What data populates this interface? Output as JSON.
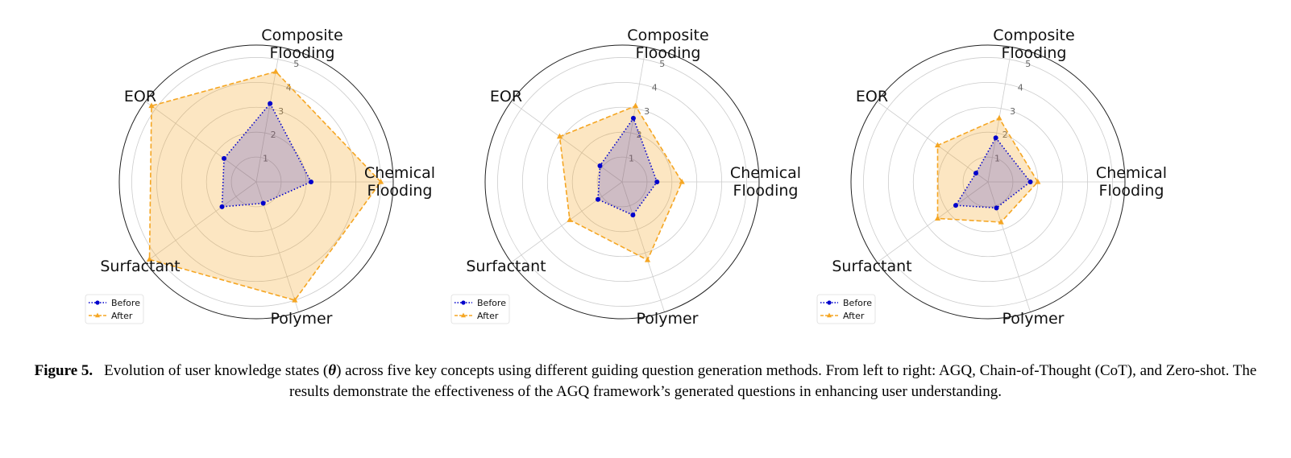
{
  "chart_data": [
    {
      "type": "radar",
      "axes": [
        "Chemical\nFlooding",
        "Composite\nFlooding",
        "EOR",
        "Surfactant",
        "Polymer"
      ],
      "rticks": [
        "1",
        "2",
        "3",
        "4",
        "5"
      ],
      "rlim": [
        0,
        5.5
      ],
      "legend_position": "lower-left",
      "series": [
        {
          "name": "Before",
          "values": [
            2.2,
            3.2,
            1.6,
            1.7,
            0.9
          ],
          "color": "#0000cc",
          "linestyle": "dotted",
          "marker": "circle"
        },
        {
          "name": "After",
          "values": [
            5.0,
            4.5,
            5.2,
            5.3,
            5.0
          ],
          "color": "#f5a623",
          "linestyle": "dashed",
          "marker": "triangle"
        }
      ]
    },
    {
      "type": "radar",
      "axes": [
        "Chemical\nFlooding",
        "Composite\nFlooding",
        "EOR",
        "Surfactant",
        "Polymer"
      ],
      "rticks": [
        "1",
        "2",
        "3",
        "4",
        "5"
      ],
      "rlim": [
        0,
        5.5
      ],
      "legend_position": "lower-left",
      "series": [
        {
          "name": "Before",
          "values": [
            1.4,
            2.6,
            1.1,
            1.2,
            1.4
          ],
          "color": "#0000cc",
          "linestyle": "dotted",
          "marker": "circle"
        },
        {
          "name": "After",
          "values": [
            2.4,
            3.1,
            3.1,
            2.6,
            3.3
          ],
          "color": "#f5a623",
          "linestyle": "dashed",
          "marker": "triangle"
        }
      ]
    },
    {
      "type": "radar",
      "axes": [
        "Chemical\nFlooding",
        "Composite\nFlooding",
        "EOR",
        "Surfactant",
        "Polymer"
      ],
      "rticks": [
        "1",
        "2",
        "3",
        "4",
        "5"
      ],
      "rlim": [
        0,
        5.5
      ],
      "legend_position": "lower-left",
      "series": [
        {
          "name": "Before",
          "values": [
            1.7,
            1.8,
            0.6,
            1.6,
            1.1
          ],
          "color": "#0000cc",
          "linestyle": "dotted",
          "marker": "circle"
        },
        {
          "name": "After",
          "values": [
            2.0,
            2.6,
            2.5,
            2.5,
            1.7
          ],
          "color": "#f5a623",
          "linestyle": "dashed",
          "marker": "triangle"
        }
      ]
    }
  ],
  "caption": {
    "label": "Figure 5.",
    "text_before": "Evolution of user knowledge states (",
    "symbol": "θ",
    "text_after": ") across five key concepts using different guiding question generation methods. From left to right: AGQ, Chain-of-Thought (CoT), and Zero-shot. The results demonstrate the effectiveness of the AGQ framework’s generated questions in enhancing user understanding."
  }
}
